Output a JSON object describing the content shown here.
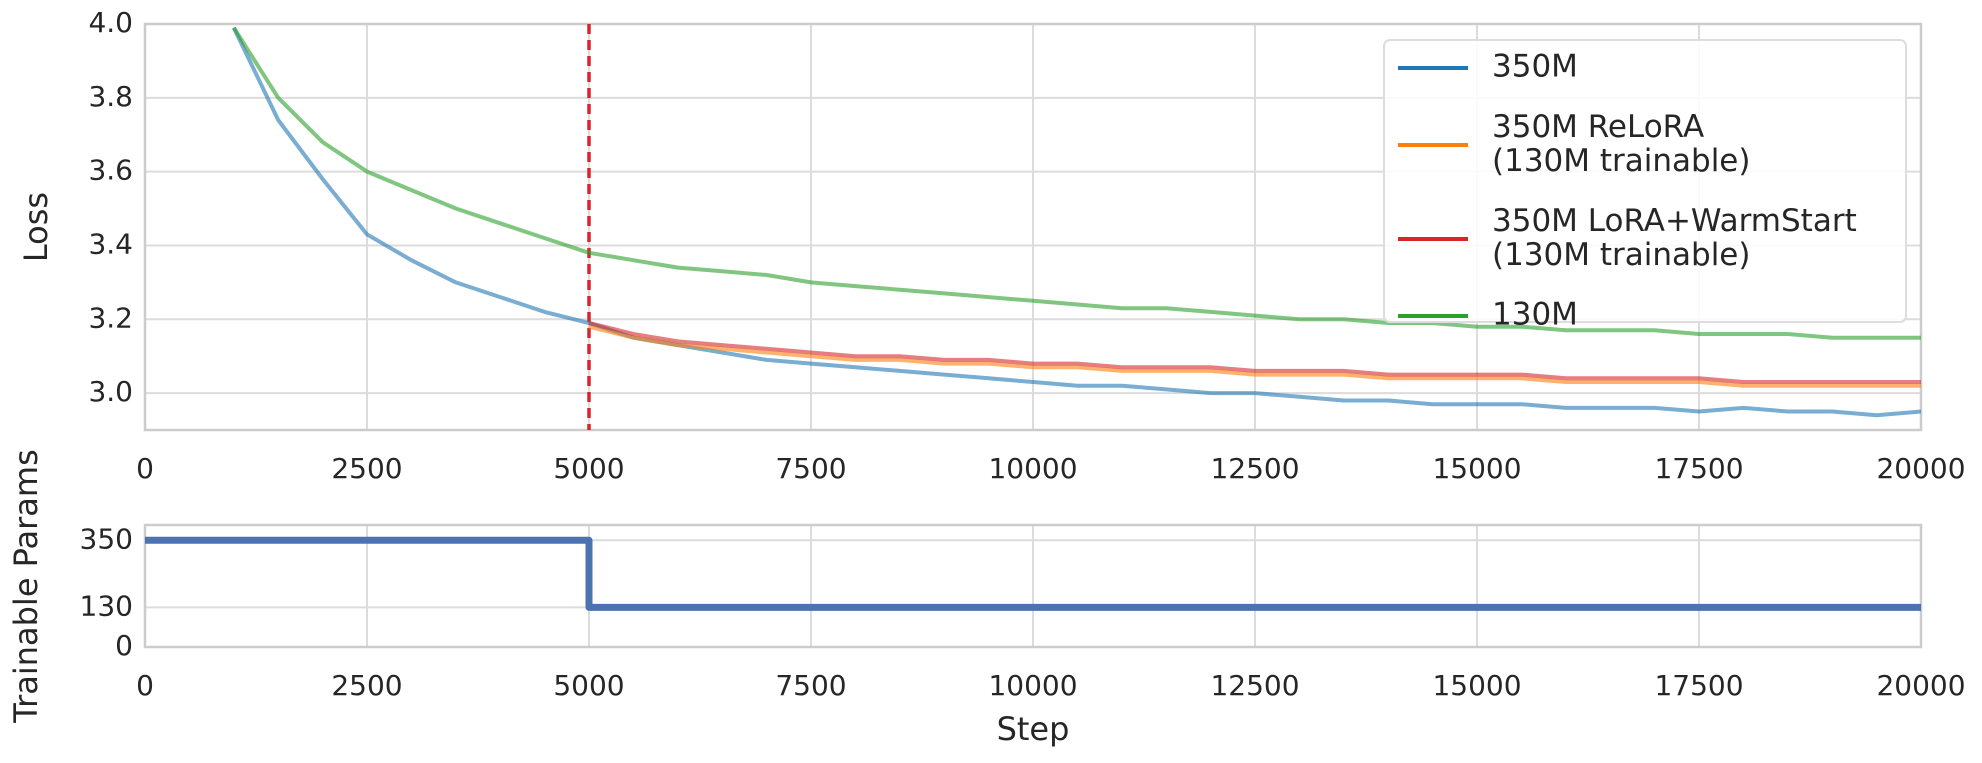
{
  "chart_data": [
    {
      "type": "line",
      "ylabel": "Loss",
      "grid": true,
      "legend": "upper right",
      "xlim": [
        0,
        20000
      ],
      "xticks": [
        0,
        2500,
        5000,
        7500,
        10000,
        12500,
        15000,
        17500,
        20000
      ],
      "ylim": [
        2.9,
        4.0
      ],
      "yticks": [
        {
          "value": 3,
          "label": "3.0"
        },
        3.2,
        3.4,
        3.6,
        3.8,
        {
          "value": 4,
          "label": "4.0"
        }
      ],
      "vlines": [
        {
          "x": 5000,
          "color": "#d62728"
        }
      ],
      "series": [
        {
          "name": "350M",
          "color": "#1f77b4",
          "x": [
            1000,
            1500,
            2000,
            2500,
            3000,
            3500,
            4000,
            4500,
            5000,
            5500,
            6000,
            6500,
            7000,
            7500,
            8000,
            8500,
            9000,
            9500,
            10000,
            10500,
            11000,
            11500,
            12000,
            12500,
            13000,
            13500,
            14000,
            14500,
            15000,
            15500,
            16000,
            16500,
            17000,
            17500,
            18000,
            18500,
            19000,
            19500,
            20000
          ],
          "values": [
            3.99,
            3.74,
            3.58,
            3.43,
            3.36,
            3.3,
            3.26,
            3.22,
            3.19,
            3.15,
            3.13,
            3.11,
            3.09,
            3.08,
            3.07,
            3.06,
            3.05,
            3.04,
            3.03,
            3.02,
            3.02,
            3.01,
            3.0,
            3.0,
            2.99,
            2.98,
            2.98,
            2.97,
            2.97,
            2.97,
            2.96,
            2.96,
            2.96,
            2.95,
            2.96,
            2.95,
            2.95,
            2.94,
            2.95
          ]
        },
        {
          "name": "350M ReLoRA\n(130M trainable)",
          "color": "#ff7f0e",
          "x": [
            5000,
            5500,
            6000,
            6500,
            7000,
            7500,
            8000,
            8500,
            9000,
            9500,
            10000,
            10500,
            11000,
            11500,
            12000,
            12500,
            13000,
            13500,
            14000,
            14500,
            15000,
            15500,
            16000,
            16500,
            17000,
            17500,
            18000,
            18500,
            19000,
            19500,
            20000
          ],
          "values": [
            3.18,
            3.15,
            3.13,
            3.12,
            3.11,
            3.1,
            3.09,
            3.09,
            3.08,
            3.08,
            3.07,
            3.07,
            3.06,
            3.06,
            3.06,
            3.05,
            3.05,
            3.05,
            3.04,
            3.04,
            3.04,
            3.04,
            3.03,
            3.03,
            3.03,
            3.03,
            3.02,
            3.02,
            3.02,
            3.02,
            3.02
          ]
        },
        {
          "name": "350M LoRA+WarmStart\n(130M trainable)",
          "color": "#d62728",
          "x": [
            5000,
            5500,
            6000,
            6500,
            7000,
            7500,
            8000,
            8500,
            9000,
            9500,
            10000,
            10500,
            11000,
            11500,
            12000,
            12500,
            13000,
            13500,
            14000,
            14500,
            15000,
            15500,
            16000,
            16500,
            17000,
            17500,
            18000,
            18500,
            19000,
            19500,
            20000
          ],
          "values": [
            3.19,
            3.16,
            3.14,
            3.13,
            3.12,
            3.11,
            3.1,
            3.1,
            3.09,
            3.09,
            3.08,
            3.08,
            3.07,
            3.07,
            3.07,
            3.06,
            3.06,
            3.06,
            3.05,
            3.05,
            3.05,
            3.05,
            3.04,
            3.04,
            3.04,
            3.04,
            3.03,
            3.03,
            3.03,
            3.03,
            3.03
          ]
        },
        {
          "name": "130M",
          "color": "#2ca02c",
          "x": [
            1000,
            1500,
            2000,
            2500,
            3000,
            3500,
            4000,
            4500,
            5000,
            5500,
            6000,
            6500,
            7000,
            7500,
            8000,
            8500,
            9000,
            9500,
            10000,
            10500,
            11000,
            11500,
            12000,
            12500,
            13000,
            13500,
            14000,
            14500,
            15000,
            15500,
            16000,
            16500,
            17000,
            17500,
            18000,
            18500,
            19000,
            19500,
            20000
          ],
          "values": [
            3.99,
            3.8,
            3.68,
            3.6,
            3.55,
            3.5,
            3.46,
            3.42,
            3.38,
            3.36,
            3.34,
            3.33,
            3.32,
            3.3,
            3.29,
            3.28,
            3.27,
            3.26,
            3.25,
            3.24,
            3.23,
            3.23,
            3.22,
            3.21,
            3.2,
            3.2,
            3.19,
            3.19,
            3.18,
            3.18,
            3.17,
            3.17,
            3.17,
            3.16,
            3.16,
            3.16,
            3.15,
            3.15,
            3.15
          ]
        }
      ]
    },
    {
      "type": "line",
      "ylabel": "Trainable Params",
      "xlabel": "Step",
      "grid": true,
      "xlim": [
        0,
        20000
      ],
      "xticks": [
        0,
        2500,
        5000,
        7500,
        10000,
        12500,
        15000,
        17500,
        20000
      ],
      "ylim": [
        0,
        400
      ],
      "yticks": [
        0,
        130,
        350
      ],
      "series": [
        {
          "color": "#4c72b0",
          "x": [
            0,
            5000,
            5000,
            20000
          ],
          "values": [
            350,
            350,
            130,
            130
          ]
        }
      ]
    }
  ]
}
